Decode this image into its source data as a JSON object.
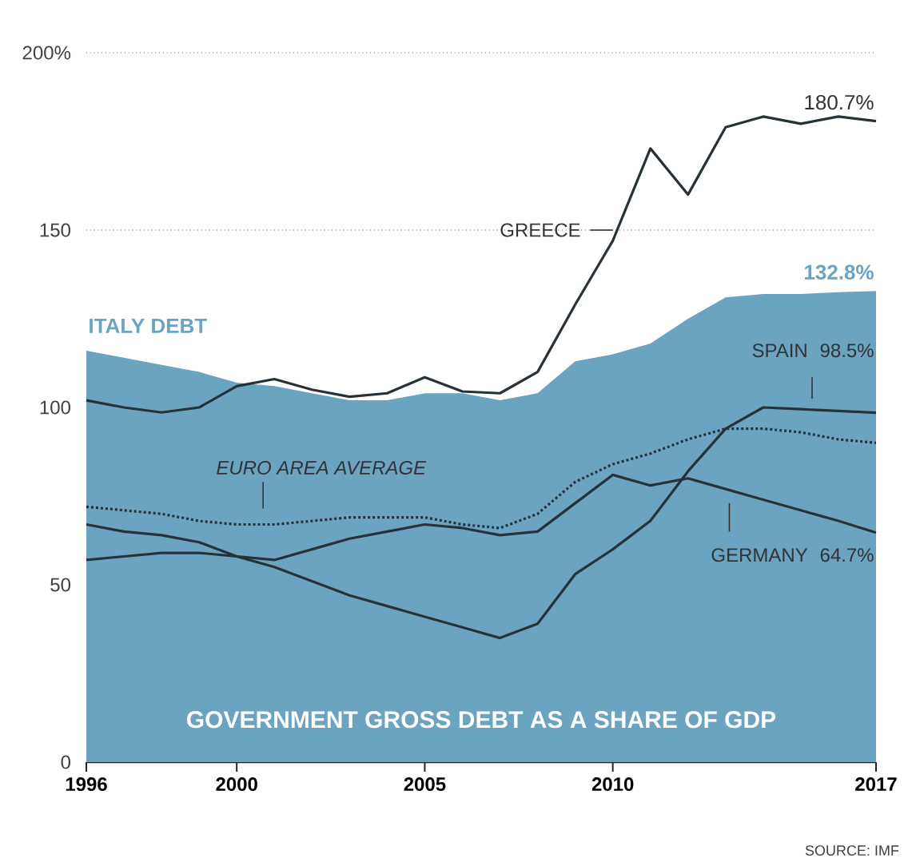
{
  "chart_data": {
    "type": "line",
    "title": "GOVERNMENT GROSS DEBT AS A SHARE OF GDP",
    "x": [
      1996,
      1997,
      1998,
      1999,
      2000,
      2001,
      2002,
      2003,
      2004,
      2005,
      2006,
      2007,
      2008,
      2009,
      2010,
      2011,
      2012,
      2013,
      2014,
      2015,
      2016,
      2017
    ],
    "xlim": [
      1996,
      2017
    ],
    "xticks": [
      1996,
      2000,
      2005,
      2010,
      2017
    ],
    "ylim": [
      0,
      200
    ],
    "yticks": [
      0,
      50,
      100,
      150,
      {
        "value": 200,
        "label": "200%"
      }
    ],
    "grid": "y",
    "marker": "none",
    "series": [
      {
        "name": "ITALY DEBT",
        "type": "area",
        "color": "#6aa4c1",
        "values": [
          116,
          114,
          112,
          110,
          107,
          106,
          104,
          102,
          102,
          104,
          104,
          102,
          104,
          113,
          115,
          118,
          125,
          131,
          132,
          132,
          132.5,
          132.8
        ]
      },
      {
        "name": "GREECE",
        "color": "#263238",
        "line_style": "solid",
        "values": [
          102,
          100,
          98.6,
          100,
          106,
          108,
          105,
          103,
          104,
          108.5,
          104.5,
          104,
          110,
          129,
          147,
          173,
          160,
          179,
          182,
          180,
          182,
          180.7
        ]
      },
      {
        "name": "SPAIN",
        "color": "#263238",
        "line_style": "solid",
        "values": [
          67,
          65,
          64,
          62,
          58,
          55,
          51,
          47,
          44,
          41,
          38,
          35,
          39,
          53,
          60,
          68,
          82,
          94,
          100,
          99.5,
          99,
          98.5
        ]
      },
      {
        "name": "EURO AREA AVERAGE",
        "color": "#263238",
        "line_style": "dotted",
        "values": [
          72,
          71,
          70,
          68,
          67,
          67,
          68,
          69,
          69,
          69,
          67,
          66,
          70,
          79,
          84,
          87,
          91,
          94,
          94,
          93,
          91,
          90
        ]
      },
      {
        "name": "GERMANY",
        "color": "#263238",
        "line_style": "solid",
        "values": [
          57,
          58,
          59,
          59,
          58,
          57,
          60,
          63,
          65,
          67,
          66,
          64,
          65,
          73,
          81,
          78,
          80,
          77,
          74,
          71,
          68,
          64.7
        ]
      }
    ],
    "annotations": [
      "180.7%",
      "132.8%",
      "98.5%",
      "64.7%",
      "SOURCE: IMF"
    ]
  }
}
